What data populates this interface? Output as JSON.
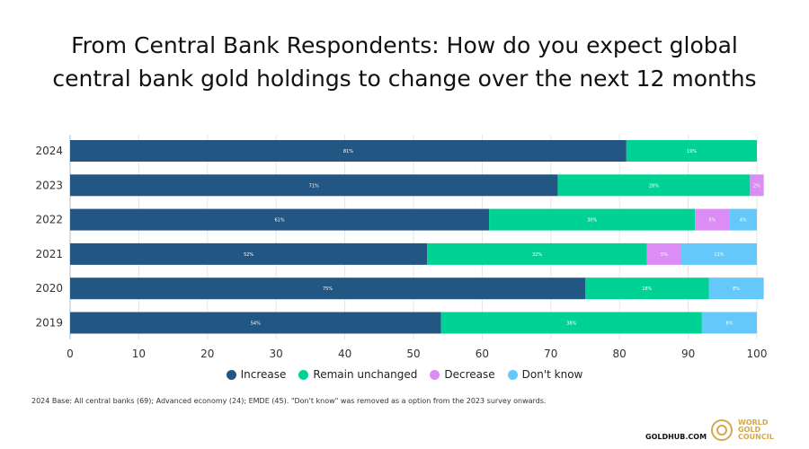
{
  "title_lines": [
    "From Central Bank Respondents: How do you expect global",
    "central bank gold holdings to change over the next 12 months"
  ],
  "chart_data": {
    "type": "bar",
    "orientation": "horizontal",
    "stacked": true,
    "categories": [
      "2024",
      "2023",
      "2022",
      "2021",
      "2020",
      "2019"
    ],
    "series": [
      {
        "name": "Increase",
        "color": "#225784",
        "values": [
          81,
          71,
          61,
          52,
          75,
          54
        ]
      },
      {
        "name": "Remain unchanged",
        "color": "#00d296",
        "values": [
          19,
          28,
          30,
          32,
          18,
          38
        ]
      },
      {
        "name": "Decrease",
        "color": "#dc8cf5",
        "values": [
          0,
          2,
          5,
          5,
          0,
          0
        ]
      },
      {
        "name": "Don't know",
        "color": "#64c8fa",
        "values": [
          0,
          0,
          4,
          11,
          8,
          8
        ]
      }
    ],
    "xlim": [
      0,
      100
    ],
    "xticks": [
      0,
      10,
      20,
      30,
      40,
      50,
      60,
      70,
      80,
      90,
      100
    ],
    "grid": true,
    "legend": "bottom"
  },
  "note": "2024 Base: All central banks (69); Advanced economy (24); EMDE (45). \"Don't know\" was removed as a option from the 2023 survey onwards.",
  "site": "GOLDHUB.COM",
  "logo_text": [
    "WORLD",
    "GOLD",
    "COUNCIL"
  ]
}
